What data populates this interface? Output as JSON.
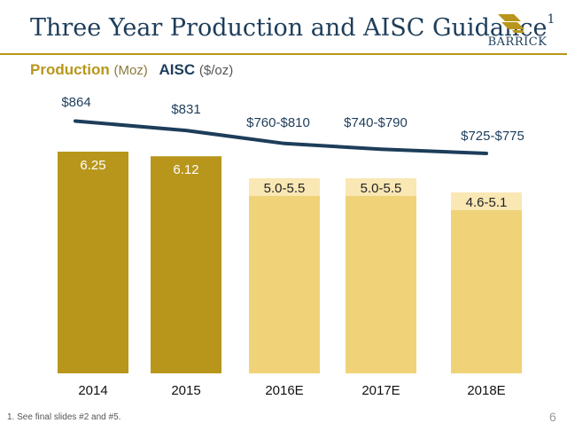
{
  "title": "Three Year Production and AISC Guidance",
  "title_footnote_mark": "1",
  "logo": {
    "name": "BARRICK",
    "icon": "barrick-logo-icon"
  },
  "legend": {
    "production_label": "Production",
    "production_unit": "(Moz)",
    "aisc_label": "AISC",
    "aisc_unit": "($/oz)"
  },
  "footnote": "1. See final slides #2 and #5.",
  "page_number": "6",
  "colors": {
    "actual_bar": "#b8961b",
    "guidance_bar": "#f0d378",
    "guidance_bar_top": "#f9e7b4",
    "aisc_line": "#1d3d5a",
    "rule": "#b8961b"
  },
  "chart_data": {
    "type": "bar",
    "categories": [
      "2014",
      "2015",
      "2016E",
      "2017E",
      "2018E"
    ],
    "series": [
      {
        "name": "Production (Moz)",
        "type": "bar",
        "values": [
          6.25,
          6.12,
          null,
          null,
          null
        ],
        "ranges": [
          null,
          null,
          [
            5.0,
            5.5
          ],
          [
            5.0,
            5.5
          ],
          [
            4.6,
            5.1
          ]
        ],
        "data_labels": [
          "6.25",
          "6.12",
          "5.0-5.5",
          "5.0-5.5",
          "4.6-5.1"
        ]
      },
      {
        "name": "AISC ($/oz)",
        "type": "line",
        "values": [
          864,
          831,
          785,
          765,
          750
        ],
        "data_labels": [
          "$864",
          "$831",
          "$760-$810",
          "$740-$790",
          "$725-$775"
        ]
      }
    ],
    "ylim": [
      0,
      6.95
    ],
    "aisc_ylim": [
      0,
      1000
    ],
    "legend": "top-left",
    "grid": false
  }
}
